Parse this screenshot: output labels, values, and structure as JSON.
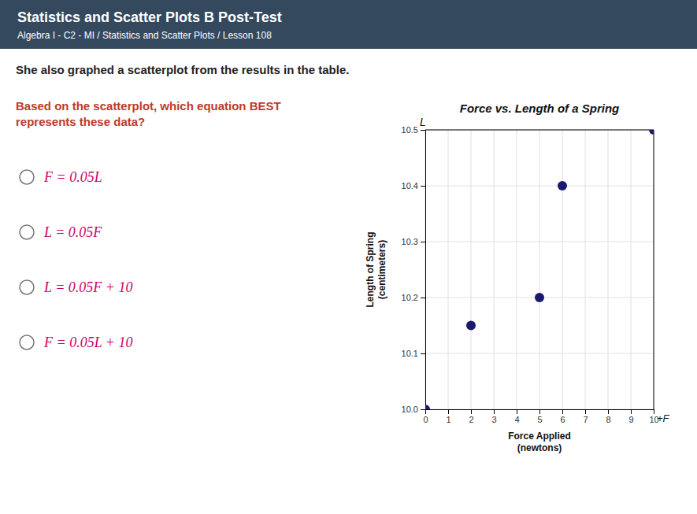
{
  "chart_data": {
    "type": "scatter",
    "title": "Force vs. Length of a Spring",
    "x_label": "Force Applied\n(newtons)",
    "y_label": "Length of Spring\n(centimeters)",
    "x": [
      0,
      2,
      5,
      6,
      10
    ],
    "values": [
      10.0,
      10.15,
      10.2,
      10.4,
      10.5
    ],
    "color": "#1a1a6e",
    "xlim": [
      0,
      10
    ],
    "ylim": [
      10.0,
      10.5
    ],
    "xticks": [
      0,
      1,
      2,
      3,
      4,
      5,
      6,
      7,
      8,
      9,
      10
    ],
    "yticks": [
      {
        "value": 10.0,
        "label": "10.0"
      },
      10.1,
      10.2,
      10.3,
      10.4,
      10.5
    ],
    "grid": true,
    "annotations": [
      "L",
      "+F"
    ]
  },
  "page": {
    "title": "Statistics and Scatter Plots B Post-Test",
    "subtitle": "Algebra I - C2 - MI / Statistics and Scatter Plots / Lesson 108",
    "question": "She also graphed a scatterplot from the results in the table.",
    "prompt": "Based on the scatterplot, which equation BEST represents these data?",
    "options": [
      "F = 0.05L",
      "L = 0.05F",
      "L = 0.05F + 10",
      "F = 0.05L + 10"
    ]
  }
}
